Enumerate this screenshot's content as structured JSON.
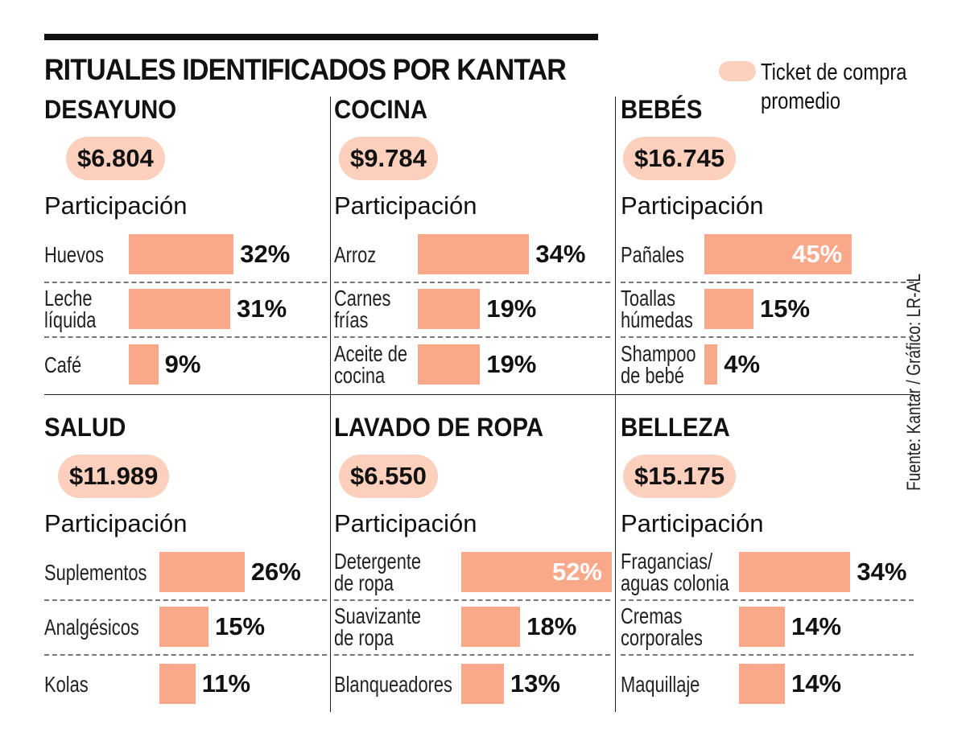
{
  "title": "RITUALES IDENTIFICADOS POR KANTAR",
  "legend": {
    "label": "Ticket de compra\npromedio",
    "color": "#FDCFBD"
  },
  "source": "Fuente: Kantar / Gráfico: LR-AL",
  "colors": {
    "bar": "#F9A88A",
    "pill": "#FDCFBD"
  },
  "chart_data": {
    "type": "bar",
    "title": "RITUALES IDENTIFICADOS POR KANTAR",
    "subtitle_label": "Participación",
    "panels": [
      {
        "name": "DESAYUNO",
        "ticket": "$6.804",
        "participacion_label": "Participación",
        "items": [
          {
            "label": "Huevos",
            "value": 32,
            "text": "32%"
          },
          {
            "label": "Leche\nlíquida",
            "value": 31,
            "text": "31%"
          },
          {
            "label": "Café",
            "value": 9,
            "text": "9%"
          }
        ]
      },
      {
        "name": "COCINA",
        "ticket": "$9.784",
        "participacion_label": "Participación",
        "items": [
          {
            "label": "Arroz",
            "value": 34,
            "text": "34%"
          },
          {
            "label": "Carnes\nfrías",
            "value": 19,
            "text": "19%"
          },
          {
            "label": "Aceite de\ncocina",
            "value": 19,
            "text": "19%"
          }
        ]
      },
      {
        "name": "BEBÉS",
        "ticket": "$16.745",
        "participacion_label": "Participación",
        "items": [
          {
            "label": "Pañales",
            "value": 45,
            "text": "45%"
          },
          {
            "label": "Toallas\nhúmedas",
            "value": 15,
            "text": "15%"
          },
          {
            "label": "Shampoo\nde bebé",
            "value": 4,
            "text": "4%"
          }
        ]
      },
      {
        "name": "SALUD",
        "ticket": "$11.989",
        "participacion_label": "Participación",
        "items": [
          {
            "label": "Suplementos",
            "value": 26,
            "text": "26%"
          },
          {
            "label": "Analgésicos",
            "value": 15,
            "text": "15%"
          },
          {
            "label": "Kolas",
            "value": 11,
            "text": "11%"
          }
        ]
      },
      {
        "name": "LAVADO DE ROPA",
        "ticket": "$6.550",
        "participacion_label": "Participación",
        "items": [
          {
            "label": "Detergente\nde ropa",
            "value": 52,
            "text": "52%"
          },
          {
            "label": "Suavizante\nde ropa",
            "value": 18,
            "text": "18%"
          },
          {
            "label": "Blanqueadores",
            "value": 13,
            "text": "13%"
          }
        ]
      },
      {
        "name": "BELLEZA",
        "ticket": "$15.175",
        "participacion_label": "Participación",
        "items": [
          {
            "label": "Fragancias/\naguas colonia",
            "value": 34,
            "text": "34%"
          },
          {
            "label": "Cremas\ncorporales",
            "value": 14,
            "text": "14%"
          },
          {
            "label": "Maquillaje",
            "value": 14,
            "text": "14%"
          }
        ]
      }
    ]
  }
}
